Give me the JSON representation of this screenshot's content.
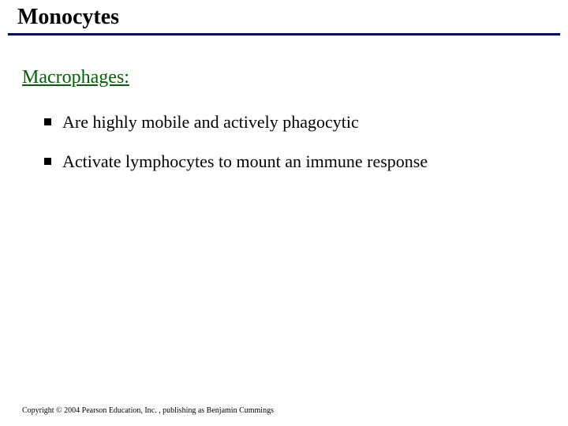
{
  "slide": {
    "title": "Monocytes",
    "subtitle": "Macrophages:",
    "bullets": [
      "Are highly mobile and actively phagocytic",
      "Activate lymphocytes to mount an immune response"
    ],
    "copyright": "Copyright © 2004 Pearson Education, Inc. , publishing as Benjamin Cummings"
  },
  "colors": {
    "title_underline": "#000080",
    "subtitle": "#006400",
    "text": "#000000",
    "background": "#ffffff",
    "bullet_marker": "#000000"
  },
  "typography": {
    "title_fontsize": 28,
    "subtitle_fontsize": 24,
    "bullet_fontsize": 22,
    "copyright_fontsize": 10,
    "font_family": "Times New Roman"
  }
}
